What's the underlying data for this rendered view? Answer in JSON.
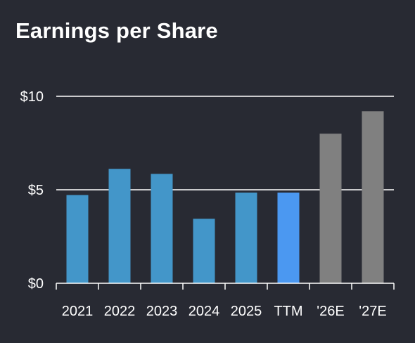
{
  "chart_data": {
    "type": "bar",
    "title": "Earnings per Share",
    "categories": [
      "2021",
      "2022",
      "2023",
      "2024",
      "2025",
      "TTM",
      "'26E",
      "'27E"
    ],
    "values": [
      4.72,
      6.12,
      5.85,
      3.45,
      4.85,
      4.85,
      8.0,
      9.2
    ],
    "bar_colors": [
      "#4396c9",
      "#4396c9",
      "#4396c9",
      "#4396c9",
      "#4396c9",
      "#4b98f1",
      "#808080",
      "#808080"
    ],
    "y_ticks": [
      0,
      5,
      10
    ],
    "y_tick_labels": [
      "$0",
      "$5",
      "$10"
    ],
    "ylim": [
      0,
      10
    ],
    "grid": true,
    "legend": "none",
    "xlabel": "",
    "ylabel": ""
  },
  "colors": {
    "background": "#282a33",
    "text": "#ffffff",
    "grid": "#ffffff",
    "actual": "#4396c9",
    "ttm": "#4b98f1",
    "estimate": "#808080"
  }
}
